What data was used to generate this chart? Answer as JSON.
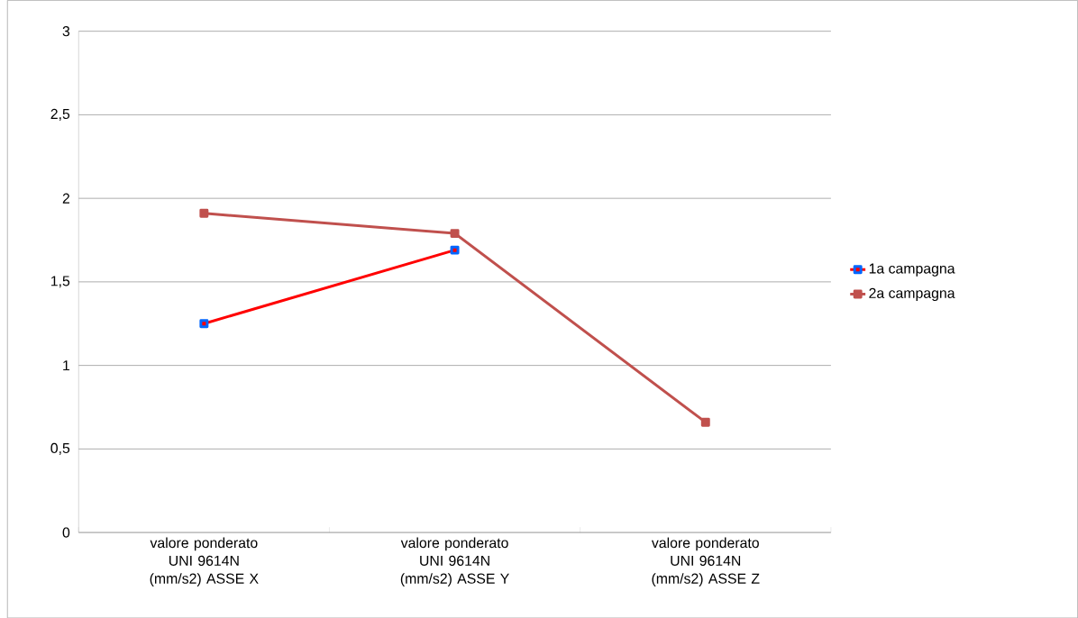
{
  "chart_data": {
    "type": "line",
    "categories": [
      "valore ponderato UNI 9614N (mm/s2) ASSE X",
      "valore ponderato UNI 9614N (mm/s2) ASSE Y",
      "valore ponderato UNI 9614N (mm/s2) ASSE Z"
    ],
    "series": [
      {
        "name": "1a campagna",
        "color": "#ff0000",
        "values": [
          1.25,
          1.69,
          null
        ]
      },
      {
        "name": "2a campagna",
        "color": "#c0504d",
        "values": [
          1.91,
          1.79,
          0.66
        ]
      }
    ],
    "ylim": [
      0,
      3
    ],
    "yticks": [
      {
        "value": 0,
        "label": "0"
      },
      {
        "value": 0.5,
        "label": "0,5"
      },
      {
        "value": 1,
        "label": "1"
      },
      {
        "value": 1.5,
        "label": "1,5"
      },
      {
        "value": 2,
        "label": "2"
      },
      {
        "value": 2.5,
        "label": "2,5"
      },
      {
        "value": 3,
        "label": "3"
      }
    ],
    "grid": "y",
    "legend": "right",
    "marker": "square",
    "line_style": "solid"
  }
}
